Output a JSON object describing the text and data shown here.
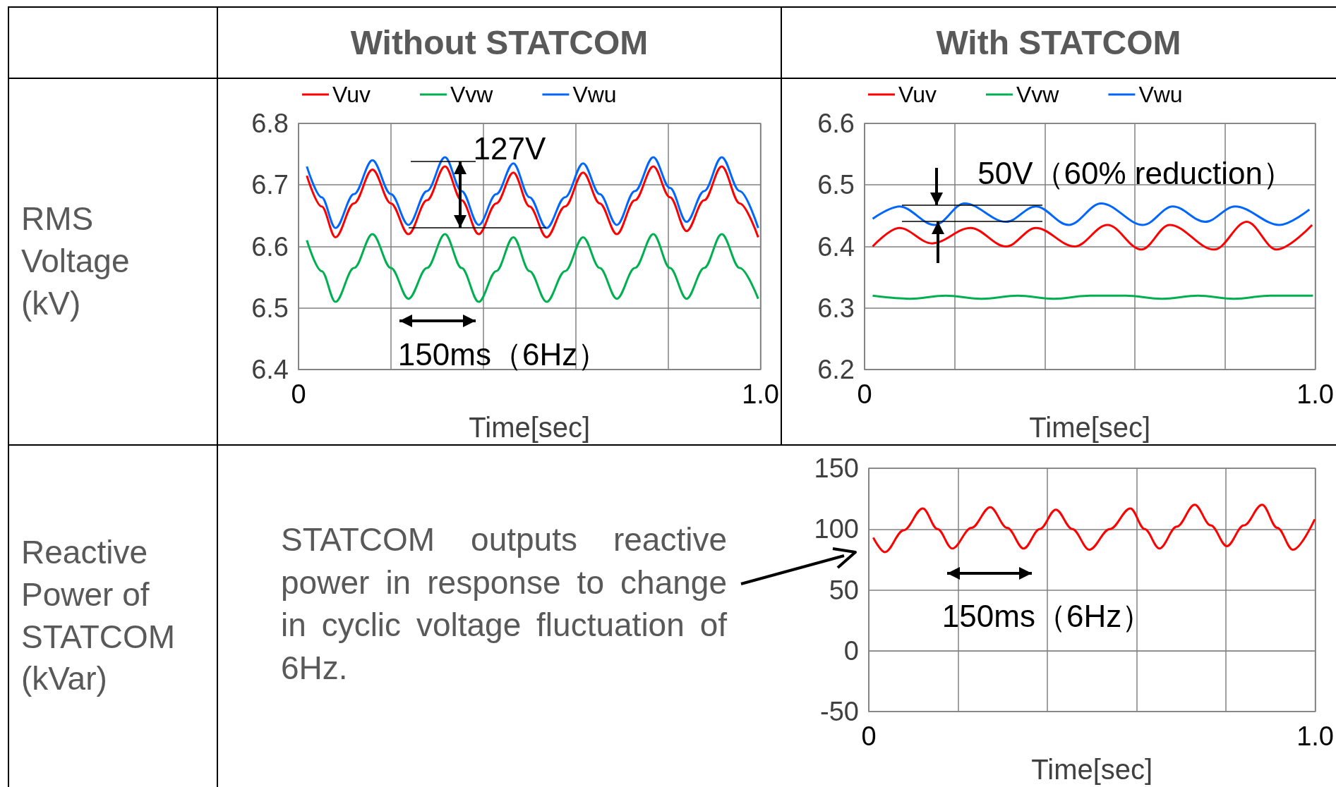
{
  "chart_data": [
    {
      "type": "line",
      "title": "Without STATCOM",
      "ylabel": "RMS Voltage (kV)",
      "xlabel": "Time[sec]",
      "xlim": [
        0,
        1
      ],
      "xticks": [
        {
          "value": 0,
          "label": "0"
        },
        {
          "value": 0.2,
          "label": null
        },
        {
          "value": 0.4,
          "label": null
        },
        {
          "value": 0.6,
          "label": null
        },
        {
          "value": 0.8,
          "label": null
        },
        {
          "value": 1,
          "label": "1.0"
        }
      ],
      "ylim": [
        6.4,
        6.8
      ],
      "yticks": [
        6.4,
        6.5,
        6.6,
        6.7,
        6.8
      ],
      "grid": true,
      "legend": "top",
      "marker": "none",
      "line_style": "solid",
      "x": [
        0.018,
        0.05,
        0.08,
        0.12,
        0.16,
        0.2,
        0.238,
        0.278,
        0.317,
        0.353,
        0.39,
        0.428,
        0.465,
        0.5,
        0.537,
        0.577,
        0.616,
        0.652,
        0.689,
        0.728,
        0.768,
        0.804,
        0.84,
        0.878,
        0.916,
        0.955,
        0.995
      ],
      "series": [
        {
          "name": "Vuv",
          "color": "#ff0000",
          "values": [
            6.715,
            6.665,
            6.615,
            6.67,
            6.725,
            6.67,
            6.62,
            6.675,
            6.73,
            6.675,
            6.62,
            6.67,
            6.72,
            6.665,
            6.615,
            6.665,
            6.72,
            6.67,
            6.62,
            6.675,
            6.73,
            6.68,
            6.625,
            6.675,
            6.73,
            6.67,
            6.615
          ]
        },
        {
          "name": "Vvw",
          "color": "#00b050",
          "values": [
            6.61,
            6.56,
            6.51,
            6.565,
            6.62,
            6.565,
            6.515,
            6.565,
            6.62,
            6.565,
            6.51,
            6.56,
            6.615,
            6.56,
            6.51,
            6.56,
            6.615,
            6.565,
            6.515,
            6.565,
            6.62,
            6.565,
            6.515,
            6.565,
            6.62,
            6.565,
            6.515
          ]
        },
        {
          "name": "Vwu",
          "color": "#0066ff",
          "values": [
            6.73,
            6.68,
            6.63,
            6.685,
            6.74,
            6.685,
            6.635,
            6.69,
            6.745,
            6.69,
            6.635,
            6.685,
            6.735,
            6.68,
            6.63,
            6.68,
            6.735,
            6.685,
            6.635,
            6.69,
            6.745,
            6.695,
            6.64,
            6.69,
            6.745,
            6.69,
            6.63
          ]
        }
      ],
      "annotations": [
        "127V",
        "150ms（6Hz）"
      ]
    },
    {
      "type": "line",
      "title": "With STATCOM",
      "xlabel": "Time[sec]",
      "xlim": [
        0,
        1
      ],
      "xticks": [
        {
          "value": 0,
          "label": "0"
        },
        {
          "value": 0.2,
          "label": null
        },
        {
          "value": 0.4,
          "label": null
        },
        {
          "value": 0.6,
          "label": null
        },
        {
          "value": 0.8,
          "label": null
        },
        {
          "value": 1,
          "label": "1.0"
        }
      ],
      "ylim": [
        6.2,
        6.6
      ],
      "yticks": [
        6.2,
        6.3,
        6.4,
        6.5,
        6.6
      ],
      "grid": true,
      "legend": "top",
      "marker": "none",
      "line_style": "solid",
      "series": [
        {
          "name": "Vuv",
          "color": "#ff0000",
          "x": [
            0.018,
            0.077,
            0.15,
            0.235,
            0.314,
            0.38,
            0.466,
            0.539,
            0.614,
            0.677,
            0.776,
            0.848,
            0.914,
            0.993
          ],
          "values": [
            6.4,
            6.43,
            6.405,
            6.43,
            6.4,
            6.43,
            6.4,
            6.435,
            6.395,
            6.435,
            6.395,
            6.44,
            6.395,
            6.435
          ]
        },
        {
          "name": "Vvw",
          "color": "#00b050",
          "x": [
            0.018,
            0.1,
            0.18,
            0.26,
            0.34,
            0.42,
            0.5,
            0.58,
            0.66,
            0.74,
            0.82,
            0.9,
            0.995
          ],
          "values": [
            6.32,
            6.315,
            6.32,
            6.315,
            6.32,
            6.315,
            6.32,
            6.32,
            6.315,
            6.32,
            6.315,
            6.32,
            6.32
          ]
        },
        {
          "name": "Vwu",
          "color": "#0066ff",
          "x": [
            0.018,
            0.077,
            0.156,
            0.222,
            0.314,
            0.38,
            0.453,
            0.525,
            0.618,
            0.684,
            0.756,
            0.822,
            0.921,
            0.987
          ],
          "values": [
            6.445,
            6.465,
            6.435,
            6.47,
            6.44,
            6.465,
            6.435,
            6.47,
            6.435,
            6.465,
            6.44,
            6.465,
            6.435,
            6.46
          ]
        }
      ],
      "annotations": [
        {
          "text": "50V（60% reduction）",
          "x": 0.222,
          "y": 6.47
        }
      ]
    },
    {
      "type": "line",
      "ylabel": "Reactive Power of STATCOM (kVar)",
      "xlabel": "Time[sec]",
      "xlim": [
        0,
        1
      ],
      "xticks": [
        {
          "value": 0,
          "label": "0"
        },
        {
          "value": 0.2,
          "label": null
        },
        {
          "value": 0.4,
          "label": null
        },
        {
          "value": 0.6,
          "label": null
        },
        {
          "value": 0.8,
          "label": null
        },
        {
          "value": 1,
          "label": "1.0"
        }
      ],
      "ylim": [
        -50,
        150
      ],
      "yticks": [
        -50,
        0,
        50,
        100,
        150
      ],
      "grid": true,
      "marker": "none",
      "line_style": "solid",
      "x": [
        0.01,
        0.036,
        0.078,
        0.121,
        0.154,
        0.187,
        0.23,
        0.272,
        0.31,
        0.347,
        0.383,
        0.419,
        0.456,
        0.494,
        0.54,
        0.586,
        0.618,
        0.651,
        0.69,
        0.73,
        0.766,
        0.802,
        0.84,
        0.881,
        0.915,
        0.95,
        0.999
      ],
      "series": [
        {
          "color": "#ff0000",
          "values": [
            93,
            81,
            99,
            117,
            100,
            84,
            101,
            118,
            101,
            84,
            100,
            116,
            100,
            83,
            100,
            117,
            100,
            84,
            102,
            120,
            103,
            86,
            103,
            120,
            101,
            83,
            108
          ]
        }
      ],
      "annotations": [
        "150ms（6Hz）",
        "STATCOM outputs reactive power in response to change in cyclic voltage fluctuation of 6Hz."
      ]
    }
  ]
}
